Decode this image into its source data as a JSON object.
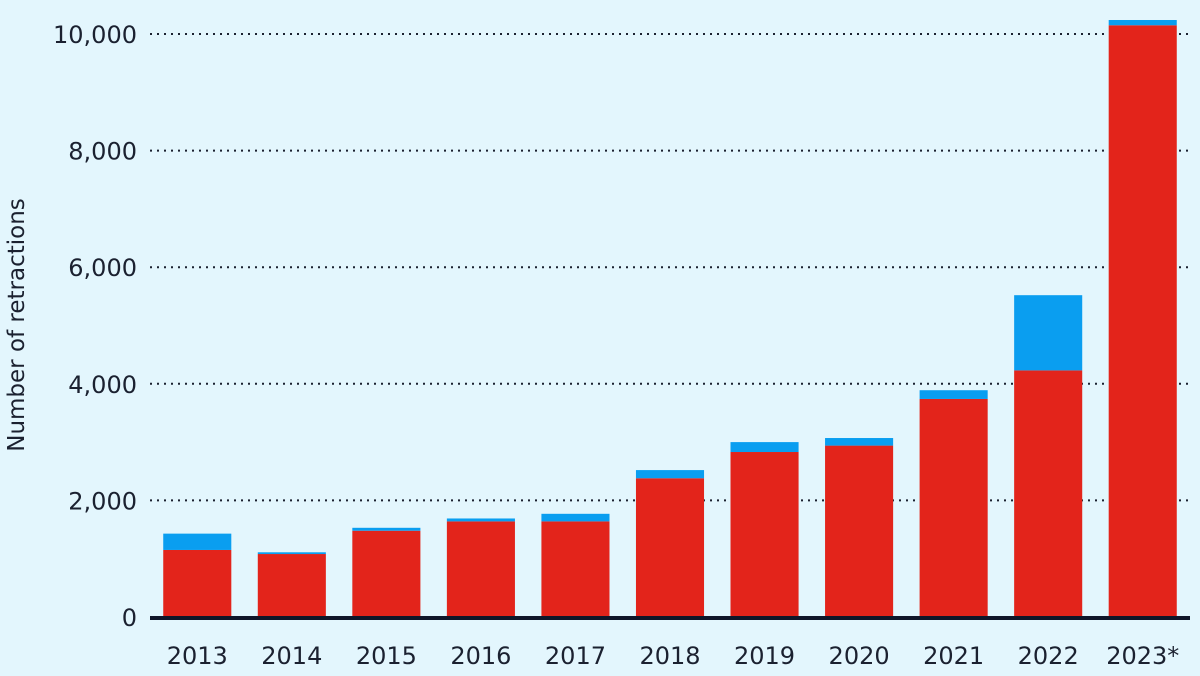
{
  "chart_data": {
    "type": "bar",
    "stacked": true,
    "categories": [
      "2013",
      "2014",
      "2015",
      "2016",
      "2017",
      "2018",
      "2019",
      "2020",
      "2021",
      "2022",
      "2023*"
    ],
    "series": [
      {
        "color": "#e3241b",
        "values": [
          1150,
          1080,
          1480,
          1640,
          1640,
          2380,
          2830,
          2940,
          3740,
          4230,
          10150
        ]
      },
      {
        "color": "#0a9ef0",
        "values": [
          280,
          30,
          50,
          50,
          130,
          140,
          170,
          130,
          150,
          1290,
          90
        ]
      }
    ],
    "xlabel": "",
    "ylabel": "Number of retractions",
    "ylim": [
      0,
      10000
    ],
    "yticks": [
      0,
      2000,
      4000,
      6000,
      8000,
      10000
    ],
    "ytick_labels": [
      "0",
      "2,000",
      "4,000",
      "6,000",
      "8,000",
      "10,000"
    ],
    "grid": "horizontal dotted",
    "legend": "none",
    "colors": {
      "background": "#e3f6fd",
      "axis": "#0f1629",
      "grid": "#1b2130"
    }
  }
}
